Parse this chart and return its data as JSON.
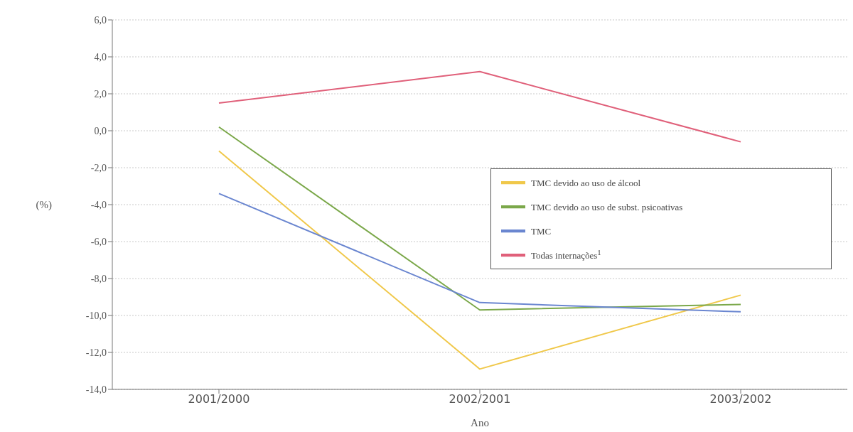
{
  "chart_data": {
    "type": "line",
    "xlabel": "Ano",
    "ylabel": "(%)",
    "categories": [
      "2001/2000",
      "2002/2001",
      "2003/2002"
    ],
    "series": [
      {
        "name": "TMC devido ao uso de álcool",
        "color": "#f0c84a",
        "values": [
          -1.1,
          -12.9,
          -8.9
        ]
      },
      {
        "name": "TMC devido ao uso de subst. psicoativas",
        "color": "#7ba84a",
        "values": [
          0.2,
          -9.7,
          -9.4
        ]
      },
      {
        "name": "TMC",
        "color": "#6a86d0",
        "values": [
          -3.4,
          -9.3,
          -9.8
        ]
      },
      {
        "name": "Todas internações$^{1}$",
        "color": "#e0607a",
        "values": [
          1.5,
          3.2,
          -0.6
        ]
      }
    ],
    "ylim": [
      -14,
      6
    ],
    "yticks": [
      {
        "value": -14,
        "label": "-14,0"
      },
      {
        "value": -12,
        "label": "-12,0"
      },
      {
        "value": -10,
        "label": "-10,0"
      },
      {
        "value": -8,
        "label": "-8,0"
      },
      {
        "value": -6,
        "label": "-6,0"
      },
      {
        "value": -4,
        "label": "-4,0"
      },
      {
        "value": -2,
        "label": "-2,0"
      },
      {
        "value": 0,
        "label": "0,0"
      },
      {
        "value": 2,
        "label": "2,0"
      },
      {
        "value": 4,
        "label": "4,0"
      },
      {
        "value": 6,
        "label": "6,0"
      }
    ],
    "grid": "y",
    "legend": "right",
    "marker": "none",
    "line_style": "solid"
  }
}
